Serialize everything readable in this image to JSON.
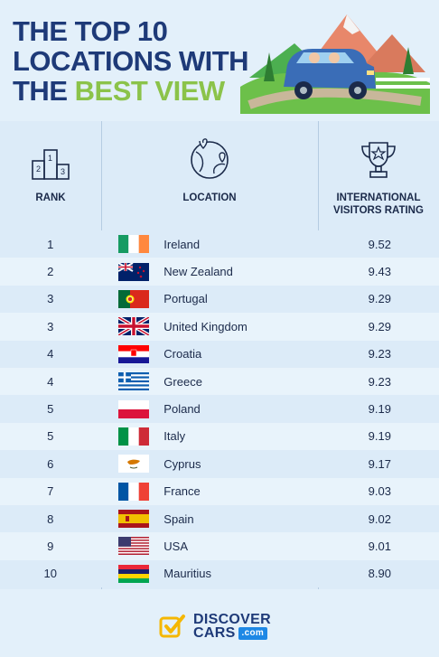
{
  "title": {
    "line1": "THE TOP 10",
    "line2": "LOCATIONS WITH",
    "line3_prefix": "THE ",
    "line3_accent": "BEST VIEW"
  },
  "headers": {
    "rank": "RANK",
    "location": "LOCATION",
    "rating_line1": "INTERNATIONAL",
    "rating_line2": "VISITORS RATING"
  },
  "rows": [
    {
      "rank": "1",
      "country": "Ireland",
      "rating": "9.52",
      "flag": "ireland"
    },
    {
      "rank": "2",
      "country": "New Zealand",
      "rating": "9.43",
      "flag": "new-zealand"
    },
    {
      "rank": "3",
      "country": "Portugal",
      "rating": "9.29",
      "flag": "portugal"
    },
    {
      "rank": "3",
      "country": "United Kingdom",
      "rating": "9.29",
      "flag": "uk"
    },
    {
      "rank": "4",
      "country": "Croatia",
      "rating": "9.23",
      "flag": "croatia"
    },
    {
      "rank": "4",
      "country": "Greece",
      "rating": "9.23",
      "flag": "greece"
    },
    {
      "rank": "5",
      "country": "Poland",
      "rating": "9.19",
      "flag": "poland"
    },
    {
      "rank": "5",
      "country": "Italy",
      "rating": "9.19",
      "flag": "italy"
    },
    {
      "rank": "6",
      "country": "Cyprus",
      "rating": "9.17",
      "flag": "cyprus"
    },
    {
      "rank": "7",
      "country": "France",
      "rating": "9.03",
      "flag": "france"
    },
    {
      "rank": "8",
      "country": "Spain",
      "rating": "9.02",
      "flag": "spain"
    },
    {
      "rank": "9",
      "country": "USA",
      "rating": "9.01",
      "flag": "usa"
    },
    {
      "rank": "10",
      "country": "Mauritius",
      "rating": "8.90",
      "flag": "mauritius"
    }
  ],
  "logo": {
    "line1": "DISCOVER",
    "line2": "CARS",
    "suffix": ".com"
  },
  "colors": {
    "title": "#1e3a78",
    "accent": "#8bc34a",
    "row_odd": "#dcebf8",
    "row_even": "#e8f3fb"
  },
  "icons": {
    "rank": "podium-icon",
    "location": "globe-pin-icon",
    "rating": "trophy-icon",
    "logo": "checkmark-logo-icon"
  }
}
